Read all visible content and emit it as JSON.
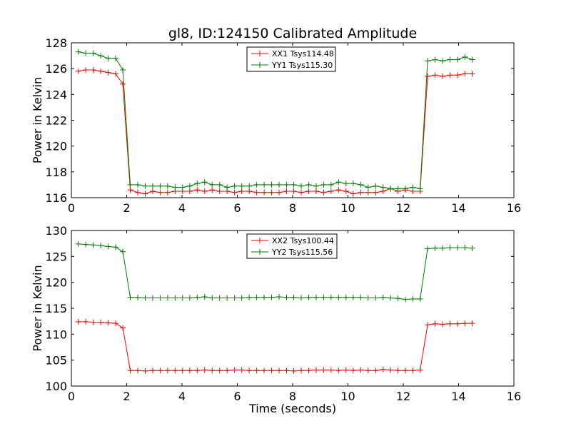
{
  "chart_data": [
    {
      "type": "line",
      "title": "gl8, ID:124150 Calibrated Amplitude",
      "xlabel": "",
      "ylabel": "Power in Kelvin",
      "xlim": [
        0,
        16
      ],
      "ylim": [
        116,
        128
      ],
      "xticks": [
        "0",
        "2",
        "4",
        "6",
        "8",
        "10",
        "12",
        "14",
        "16"
      ],
      "yticks": [
        "116",
        "118",
        "120",
        "122",
        "124",
        "126",
        "128"
      ],
      "grid": false,
      "legend_position": "top-center",
      "series": [
        {
          "name": "XX1 Tsys114.48",
          "color": "#ff0000",
          "x": [
            0.25,
            0.52,
            0.79,
            1.06,
            1.33,
            1.6,
            1.86,
            2.13,
            2.4,
            2.67,
            2.94,
            3.21,
            3.48,
            3.75,
            4.02,
            4.28,
            4.55,
            4.82,
            5.09,
            5.36,
            5.63,
            5.9,
            6.16,
            6.43,
            6.7,
            6.97,
            7.24,
            7.51,
            7.78,
            8.04,
            8.31,
            8.58,
            8.85,
            9.12,
            9.39,
            9.66,
            9.93,
            10.19,
            10.46,
            10.73,
            11.0,
            11.27,
            11.54,
            11.81,
            12.08,
            12.35,
            12.61,
            12.88,
            13.15,
            13.42,
            13.69,
            13.96,
            14.23,
            14.49
          ],
          "y": [
            125.8,
            125.9,
            125.9,
            125.8,
            125.7,
            125.6,
            124.8,
            116.6,
            116.4,
            116.3,
            116.5,
            116.4,
            116.4,
            116.5,
            116.5,
            116.5,
            116.6,
            116.5,
            116.6,
            116.5,
            116.5,
            116.4,
            116.5,
            116.5,
            116.4,
            116.4,
            116.4,
            116.4,
            116.5,
            116.5,
            116.4,
            116.5,
            116.5,
            116.4,
            116.5,
            116.6,
            116.5,
            116.3,
            116.4,
            116.4,
            116.4,
            116.5,
            116.7,
            116.5,
            116.6,
            116.5,
            116.5,
            125.4,
            125.5,
            125.4,
            125.5,
            125.5,
            125.6,
            125.6
          ]
        },
        {
          "name": "YY1 Tsys115.30",
          "color": "#008000",
          "x": [
            0.25,
            0.52,
            0.79,
            1.06,
            1.33,
            1.6,
            1.86,
            2.13,
            2.4,
            2.67,
            2.94,
            3.21,
            3.48,
            3.75,
            4.02,
            4.28,
            4.55,
            4.82,
            5.09,
            5.36,
            5.63,
            5.9,
            6.16,
            6.43,
            6.7,
            6.97,
            7.24,
            7.51,
            7.78,
            8.04,
            8.31,
            8.58,
            8.85,
            9.12,
            9.39,
            9.66,
            9.93,
            10.19,
            10.46,
            10.73,
            11.0,
            11.27,
            11.54,
            11.81,
            12.08,
            12.35,
            12.61,
            12.88,
            13.15,
            13.42,
            13.69,
            13.96,
            14.23,
            14.49
          ],
          "y": [
            127.3,
            127.2,
            127.2,
            127.0,
            126.8,
            126.8,
            125.9,
            117.0,
            117.0,
            116.9,
            116.9,
            116.9,
            116.9,
            116.8,
            116.8,
            116.9,
            117.1,
            117.2,
            117.0,
            117.0,
            116.8,
            116.9,
            116.9,
            116.9,
            117.0,
            117.0,
            117.0,
            117.0,
            117.0,
            117.0,
            116.9,
            117.0,
            116.9,
            117.0,
            117.0,
            117.2,
            117.1,
            117.1,
            117.0,
            116.8,
            116.9,
            116.8,
            116.7,
            116.7,
            116.7,
            116.8,
            116.7,
            126.6,
            126.7,
            126.6,
            126.7,
            126.7,
            126.9,
            126.7
          ]
        }
      ]
    },
    {
      "type": "line",
      "title": "",
      "xlabel": "Time (seconds)",
      "ylabel": "Power in Kelvin",
      "xlim": [
        0,
        16
      ],
      "ylim": [
        100,
        130
      ],
      "xticks": [
        "0",
        "2",
        "4",
        "6",
        "8",
        "10",
        "12",
        "14",
        "16"
      ],
      "yticks": [
        "100",
        "105",
        "110",
        "115",
        "120",
        "125",
        "130"
      ],
      "grid": false,
      "legend_position": "top-center",
      "series": [
        {
          "name": "XX2 Tsys100.44",
          "color": "#ff0000",
          "x": [
            0.25,
            0.52,
            0.79,
            1.06,
            1.33,
            1.6,
            1.86,
            2.13,
            2.4,
            2.67,
            2.94,
            3.21,
            3.48,
            3.75,
            4.02,
            4.28,
            4.55,
            4.82,
            5.09,
            5.36,
            5.63,
            5.9,
            6.16,
            6.43,
            6.7,
            6.97,
            7.24,
            7.51,
            7.78,
            8.04,
            8.31,
            8.58,
            8.85,
            9.12,
            9.39,
            9.66,
            9.93,
            10.19,
            10.46,
            10.73,
            11.0,
            11.27,
            11.54,
            11.81,
            12.08,
            12.35,
            12.61,
            12.88,
            13.15,
            13.42,
            13.69,
            13.96,
            14.23,
            14.49
          ],
          "y": [
            112.4,
            112.4,
            112.3,
            112.3,
            112.2,
            112.1,
            111.2,
            103.0,
            103.0,
            102.9,
            103.0,
            103.0,
            103.0,
            103.0,
            103.0,
            103.0,
            103.0,
            103.1,
            103.0,
            103.0,
            103.0,
            103.1,
            103.1,
            103.0,
            103.0,
            103.0,
            103.0,
            103.0,
            103.0,
            102.9,
            103.0,
            103.0,
            103.1,
            103.1,
            103.1,
            103.0,
            103.1,
            103.0,
            103.1,
            103.0,
            103.0,
            103.2,
            103.1,
            103.0,
            103.0,
            103.0,
            103.1,
            111.8,
            112.0,
            111.9,
            112.0,
            112.0,
            112.1,
            112.1
          ]
        },
        {
          "name": "YY2 Tsys115.56",
          "color": "#008000",
          "x": [
            0.25,
            0.52,
            0.79,
            1.06,
            1.33,
            1.6,
            1.86,
            2.13,
            2.4,
            2.67,
            2.94,
            3.21,
            3.48,
            3.75,
            4.02,
            4.28,
            4.55,
            4.82,
            5.09,
            5.36,
            5.63,
            5.9,
            6.16,
            6.43,
            6.7,
            6.97,
            7.24,
            7.51,
            7.78,
            8.04,
            8.31,
            8.58,
            8.85,
            9.12,
            9.39,
            9.66,
            9.93,
            10.19,
            10.46,
            10.73,
            11.0,
            11.27,
            11.54,
            11.81,
            12.08,
            12.35,
            12.61,
            12.88,
            13.15,
            13.42,
            13.69,
            13.96,
            14.23,
            14.49
          ],
          "y": [
            127.4,
            127.3,
            127.2,
            127.1,
            126.9,
            126.8,
            125.9,
            117.1,
            117.1,
            117.0,
            117.0,
            117.0,
            117.0,
            117.0,
            117.0,
            117.0,
            117.1,
            117.2,
            117.0,
            117.0,
            117.0,
            117.0,
            117.0,
            117.1,
            117.1,
            117.1,
            117.1,
            117.2,
            117.1,
            117.1,
            117.0,
            117.1,
            117.1,
            117.1,
            117.1,
            117.1,
            117.1,
            117.1,
            117.1,
            117.0,
            117.0,
            117.1,
            117.0,
            116.9,
            116.7,
            116.8,
            116.8,
            126.5,
            126.6,
            126.6,
            126.7,
            126.7,
            126.7,
            126.6
          ]
        }
      ]
    }
  ]
}
